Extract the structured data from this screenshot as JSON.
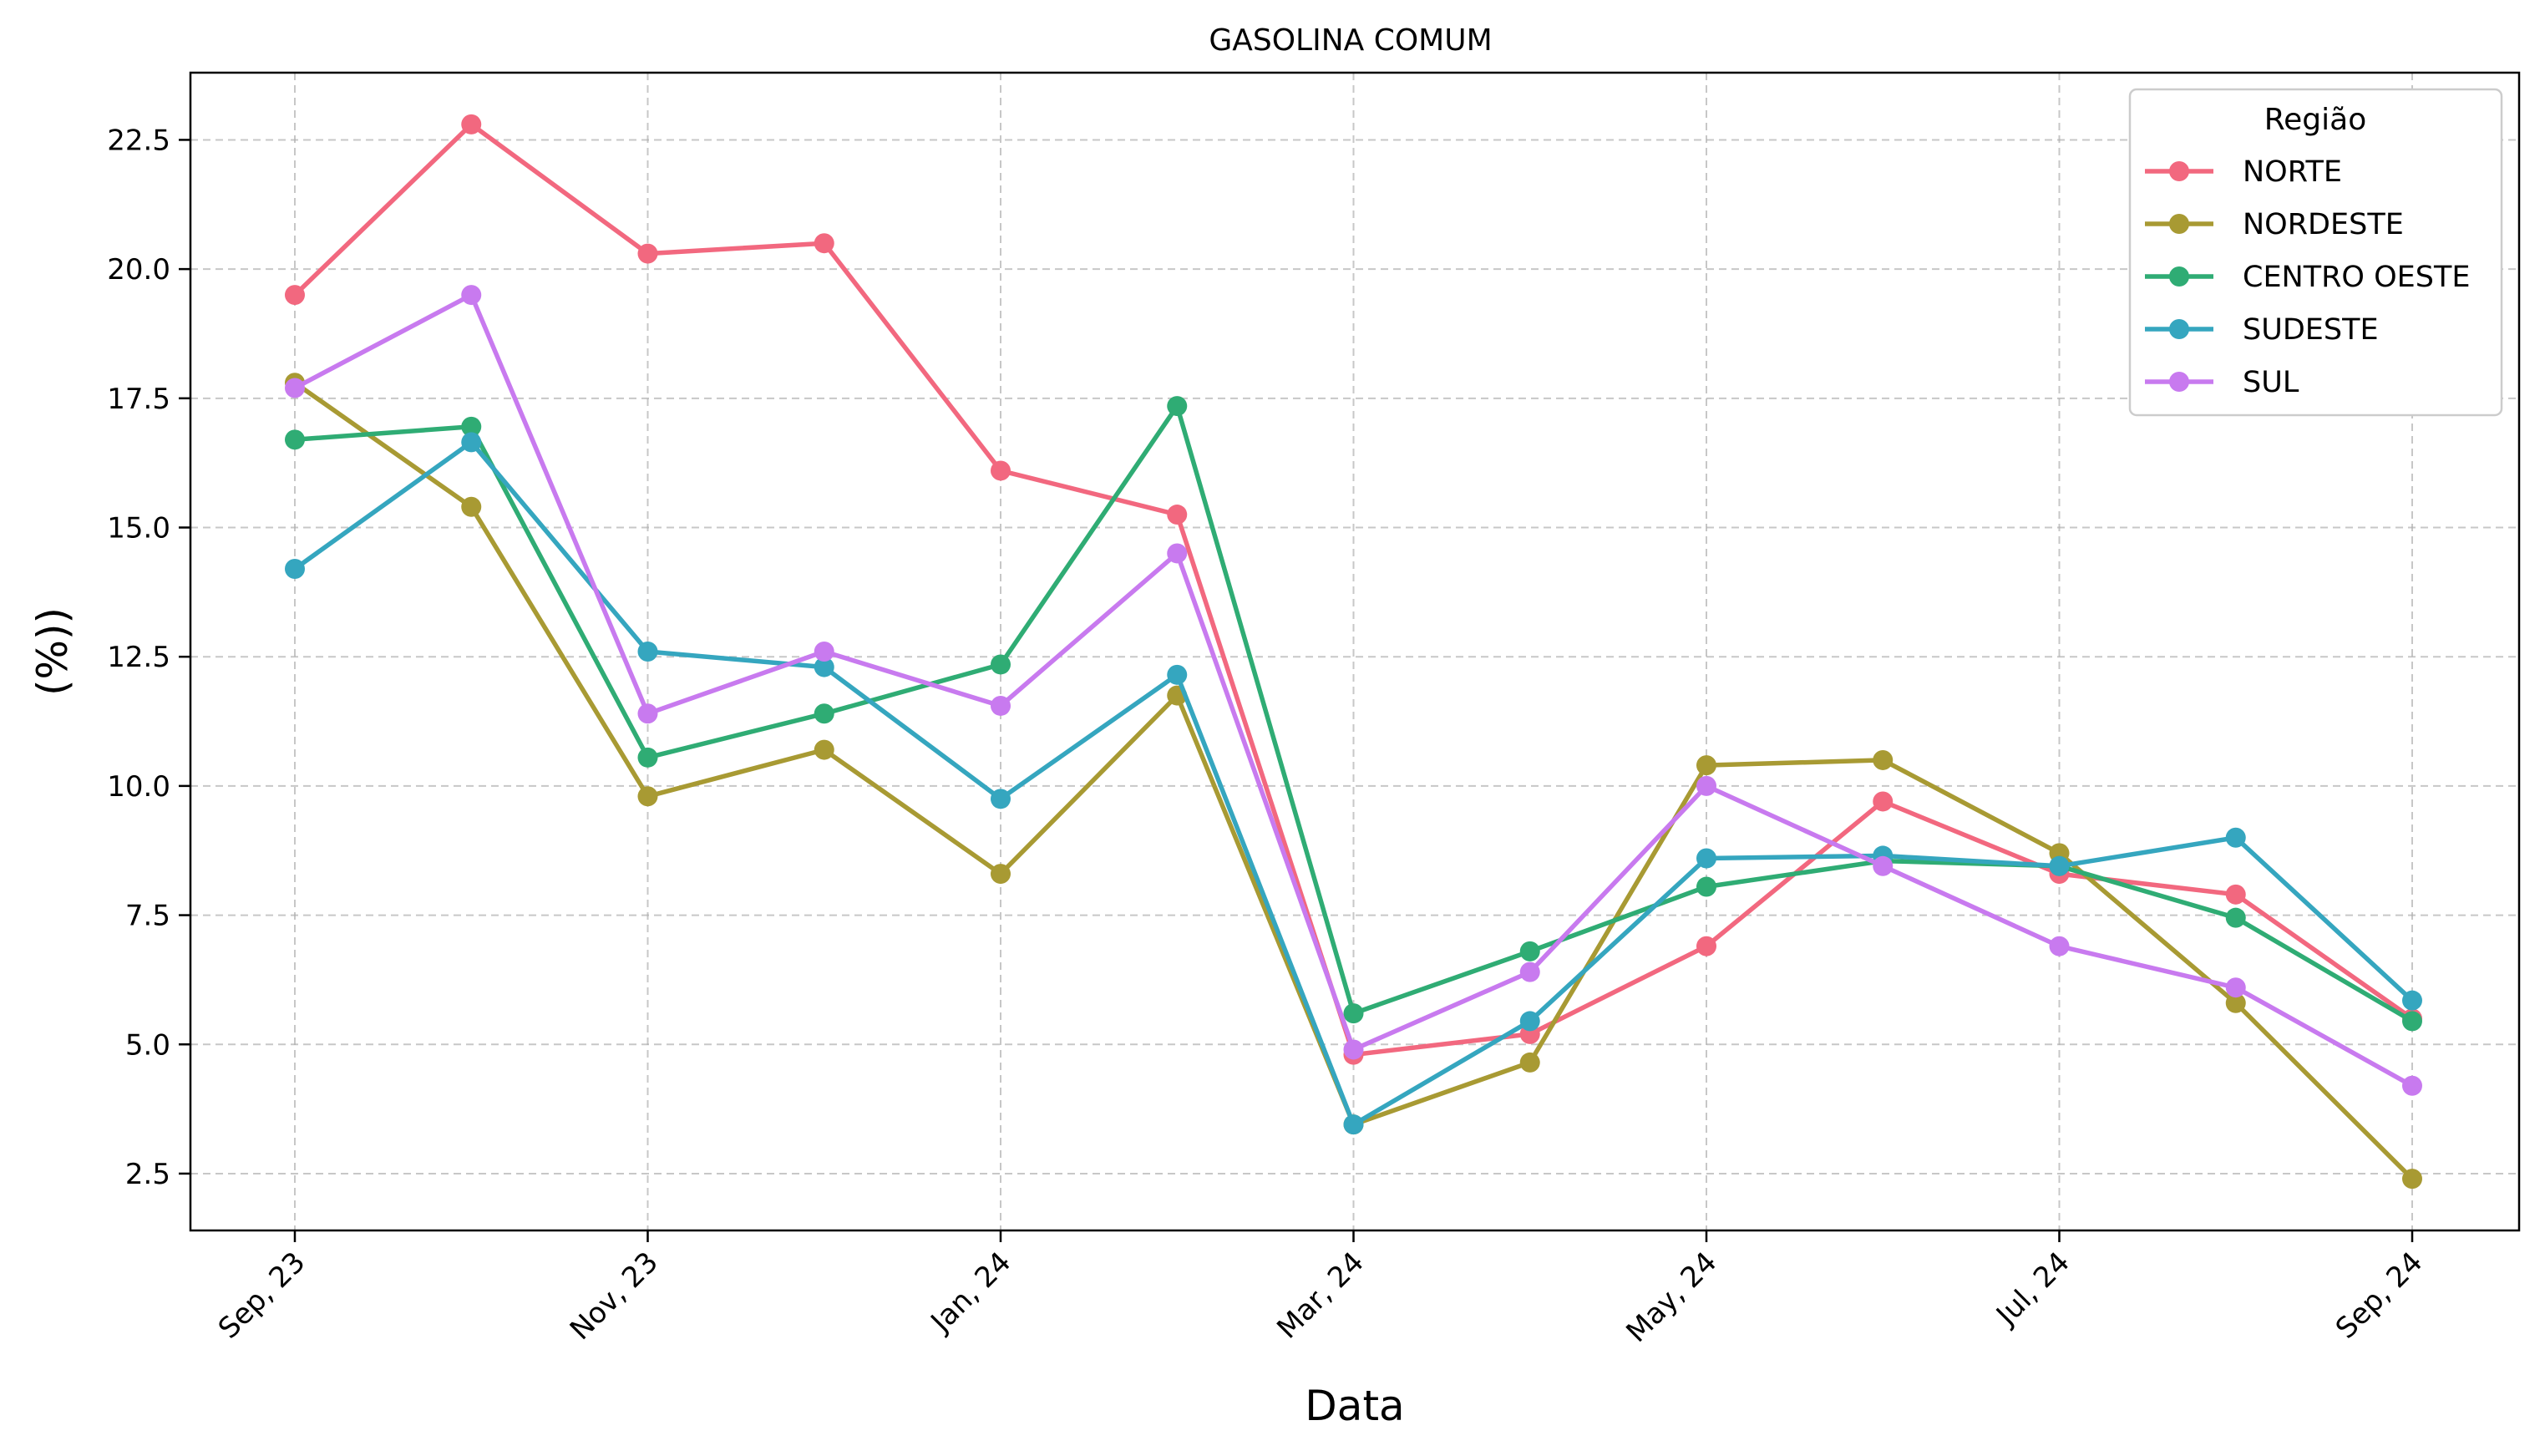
{
  "chart_data": {
    "type": "line",
    "title": "GASOLINA COMUM",
    "xlabel": "Data",
    "ylabel": "(%))",
    "x": [
      "2023-09",
      "2023-10",
      "2023-11",
      "2023-12",
      "2024-01",
      "2024-02",
      "2024-03",
      "2024-04",
      "2024-05",
      "2024-06",
      "2024-07",
      "2024-08",
      "2024-09"
    ],
    "x_tick_labels": [
      "Sep, 23",
      "Nov, 23",
      "Jan, 24",
      "Mar, 24",
      "May, 24",
      "Jul, 24",
      "Sep, 24"
    ],
    "x_tick_positions": [
      "2023-09",
      "2023-11",
      "2024-01",
      "2024-03",
      "2024-05",
      "2024-07",
      "2024-09"
    ],
    "y_ticks": [
      "2.5",
      "5.0",
      "7.5",
      "10.0",
      "12.5",
      "15.0",
      "17.5",
      "20.0",
      "22.5"
    ],
    "ylim": [
      1.4,
      23.8
    ],
    "grid": true,
    "legend": {
      "title": "Região",
      "placement": "top-right"
    },
    "series": [
      {
        "name": "NORTE",
        "color": "#f2687f",
        "values": [
          19.5,
          22.8,
          20.3,
          20.5,
          16.1,
          15.25,
          4.8,
          5.2,
          6.9,
          9.7,
          8.3,
          7.9,
          5.5
        ]
      },
      {
        "name": "NORDESTE",
        "color": "#a89a33",
        "values": [
          17.8,
          15.4,
          9.8,
          10.7,
          8.3,
          11.75,
          3.45,
          4.65,
          10.4,
          10.5,
          8.7,
          5.8,
          2.4
        ]
      },
      {
        "name": "CENTRO OESTE",
        "color": "#2fac74",
        "values": [
          16.7,
          16.95,
          10.55,
          11.4,
          12.35,
          17.35,
          5.6,
          6.8,
          8.05,
          8.55,
          8.45,
          7.45,
          5.45
        ]
      },
      {
        "name": "SUDESTE",
        "color": "#35a6bf",
        "values": [
          14.2,
          16.65,
          12.6,
          12.3,
          9.75,
          12.15,
          3.45,
          5.45,
          8.6,
          8.65,
          8.45,
          9.0,
          5.85
        ]
      },
      {
        "name": "SUL",
        "color": "#c87aef",
        "values": [
          17.7,
          19.5,
          11.4,
          12.6,
          11.55,
          14.5,
          4.9,
          6.4,
          10.0,
          8.45,
          6.9,
          6.1,
          4.2
        ]
      }
    ]
  }
}
